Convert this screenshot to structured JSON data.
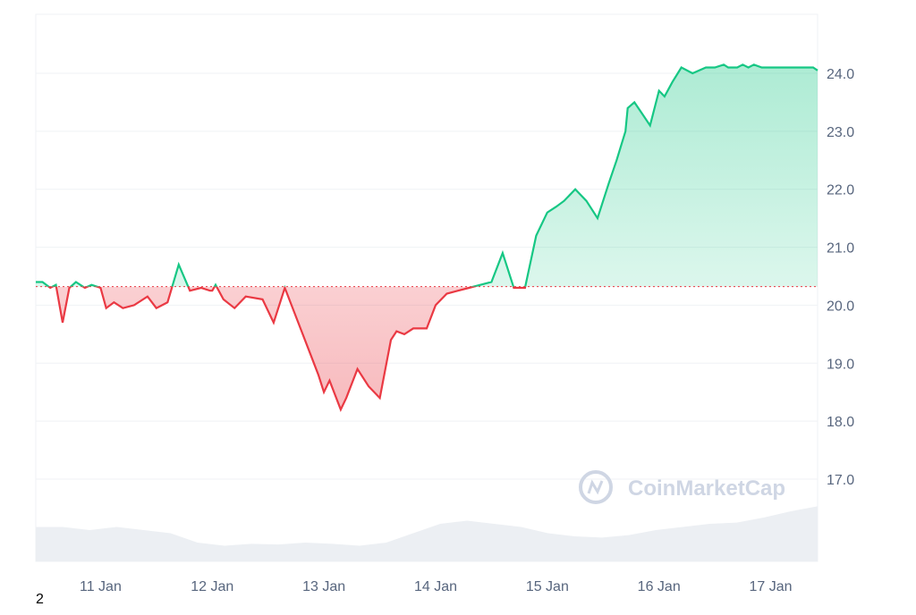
{
  "watermark": {
    "text": "CoinMarketCap"
  },
  "page_number": "2",
  "colors": {
    "up": "#16c784",
    "down": "#ea3943",
    "baseline": "#ea3943",
    "grid": "#eff2f5",
    "axis_text": "#58667e",
    "volume": "#eceff3"
  },
  "chart_data": {
    "type": "area",
    "title": "",
    "xlabel": "",
    "ylabel": "",
    "ylim": [
      16.0,
      25.0
    ],
    "y_ticks": [
      "24.0",
      "23.0",
      "22.0",
      "21.0",
      "20.0",
      "19.0",
      "18.0",
      "17.0"
    ],
    "x_ticks": [
      "11 Jan",
      "12 Jan",
      "13 Jan",
      "14 Jan",
      "15 Jan",
      "16 Jan",
      "17 Jan"
    ],
    "x_range_days": [
      10.42,
      17.42
    ],
    "baseline": 20.32,
    "grid": true,
    "legend": "none",
    "series": [
      {
        "x_days": [
          10.42,
          10.48,
          10.55,
          10.6,
          10.66,
          10.72,
          10.78,
          10.86,
          10.92,
          11.0,
          11.05,
          11.12,
          11.2,
          11.3,
          11.42,
          11.5,
          11.6,
          11.7,
          11.8,
          11.9,
          11.98,
          12.0,
          12.03,
          12.1,
          12.2,
          12.3,
          12.45,
          12.55,
          12.65,
          12.75,
          12.85,
          12.95,
          13.0,
          13.05,
          13.15,
          13.2,
          13.3,
          13.4,
          13.5,
          13.6,
          13.65,
          13.72,
          13.8,
          13.88,
          13.92,
          14.0,
          14.1,
          14.2,
          14.3,
          14.4,
          14.5,
          14.6,
          14.7,
          14.8,
          14.9,
          15.0,
          15.08,
          15.15,
          15.25,
          15.35,
          15.45,
          15.55,
          15.62,
          15.7,
          15.72,
          15.78,
          15.85,
          15.92,
          16.0,
          16.05,
          16.12,
          16.2,
          16.3,
          16.42,
          16.5,
          16.58,
          16.62,
          16.7,
          16.75,
          16.8,
          16.85,
          16.92,
          17.0,
          17.05,
          17.12,
          17.18,
          17.25,
          17.32,
          17.38,
          17.42
        ],
        "values": [
          20.4,
          20.4,
          20.3,
          20.35,
          19.7,
          20.3,
          20.4,
          20.3,
          20.35,
          20.3,
          19.95,
          20.05,
          19.95,
          20.0,
          20.15,
          19.95,
          20.05,
          20.7,
          20.25,
          20.3,
          20.25,
          20.25,
          20.35,
          20.1,
          19.95,
          20.15,
          20.1,
          19.7,
          20.3,
          19.8,
          19.3,
          18.8,
          18.5,
          18.7,
          18.2,
          18.4,
          18.9,
          18.6,
          18.4,
          19.4,
          19.55,
          19.5,
          19.6,
          19.6,
          19.6,
          20.0,
          20.2,
          20.25,
          20.3,
          20.35,
          20.4,
          20.9,
          20.3,
          20.3,
          21.2,
          21.6,
          21.7,
          21.8,
          22.0,
          21.8,
          21.5,
          22.1,
          22.5,
          23.0,
          23.4,
          23.5,
          23.3,
          23.1,
          23.7,
          23.6,
          23.85,
          24.1,
          24.0,
          24.1,
          24.1,
          24.15,
          24.1,
          24.1,
          24.15,
          24.1,
          24.15,
          24.1,
          24.1,
          24.1,
          24.1,
          24.1,
          24.1,
          24.1,
          24.1,
          24.05
        ]
      }
    ]
  }
}
